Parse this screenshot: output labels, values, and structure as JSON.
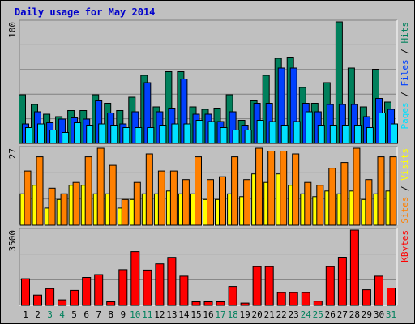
{
  "title": "Daily usage for May 2014",
  "colors": {
    "hits": "#00805c",
    "files": "#0040ff",
    "pages": "#00e0ff",
    "visits": "#ffff00",
    "sites": "#ff8000",
    "kbytes": "#ff0000",
    "weekday": "#000000",
    "weekend": "#00805c",
    "plot_bg": "#c0c0c0",
    "grid": "#808080"
  },
  "chart_data": [
    {
      "type": "bar",
      "panel": "hits-files-pages",
      "ylabel_parts": [
        "Pages",
        " / ",
        "Files",
        " / ",
        "Hits"
      ],
      "ytick": "100",
      "ymax": 100,
      "categories": [
        "1",
        "2",
        "3",
        "4",
        "5",
        "6",
        "7",
        "8",
        "9",
        "10",
        "11",
        "12",
        "13",
        "14",
        "15",
        "16",
        "17",
        "18",
        "19",
        "20",
        "21",
        "22",
        "23",
        "24",
        "25",
        "26",
        "27",
        "28",
        "29",
        "30",
        "31"
      ],
      "weekend": [
        false,
        false,
        true,
        true,
        false,
        false,
        false,
        false,
        false,
        true,
        true,
        false,
        false,
        false,
        false,
        false,
        true,
        true,
        false,
        false,
        false,
        false,
        false,
        true,
        true,
        false,
        false,
        false,
        false,
        false,
        true
      ],
      "series": [
        {
          "name": "Hits",
          "key": "hits",
          "values": [
            40,
            32,
            24,
            22,
            27,
            27,
            40,
            33,
            27,
            38,
            56,
            30,
            59,
            59,
            30,
            28,
            29,
            40,
            19,
            35,
            56,
            70,
            71,
            46,
            33,
            50,
            100,
            62,
            30,
            61,
            34
          ]
        },
        {
          "name": "Files",
          "key": "files",
          "values": [
            16,
            26,
            17,
            20,
            21,
            20,
            35,
            25,
            16,
            26,
            50,
            26,
            29,
            53,
            24,
            24,
            18,
            26,
            15,
            33,
            33,
            62,
            62,
            33,
            26,
            32,
            32,
            32,
            22,
            37,
            28
          ]
        },
        {
          "name": "Pages",
          "key": "pages",
          "values": [
            13,
            16,
            11,
            9,
            17,
            15,
            16,
            15,
            13,
            13,
            13,
            15,
            16,
            16,
            19,
            18,
            13,
            11,
            11,
            19,
            18,
            15,
            18,
            26,
            15,
            15,
            15,
            15,
            13,
            25,
            16
          ]
        }
      ]
    },
    {
      "type": "bar",
      "panel": "visits-sites",
      "ylabel_parts": [
        "Sites",
        " / ",
        "Visits"
      ],
      "ytick": "27",
      "ymax": 27,
      "categories": [
        "1",
        "2",
        "3",
        "4",
        "5",
        "6",
        "7",
        "8",
        "9",
        "10",
        "11",
        "12",
        "13",
        "14",
        "15",
        "16",
        "17",
        "18",
        "19",
        "20",
        "21",
        "22",
        "23",
        "24",
        "25",
        "26",
        "27",
        "28",
        "29",
        "30",
        "31"
      ],
      "series": [
        {
          "name": "Visits",
          "key": "visits",
          "values": [
            11,
            14,
            6,
            9,
            14,
            14,
            11,
            11,
            6,
            9,
            11,
            11,
            12,
            11,
            11,
            9,
            9,
            11,
            10,
            18,
            15,
            18,
            14,
            11,
            10,
            12,
            11,
            12,
            9,
            11,
            12
          ]
        },
        {
          "name": "Sites",
          "key": "sites",
          "values": [
            19,
            24,
            13,
            11,
            15,
            24,
            27,
            21,
            9,
            15,
            25,
            19,
            19,
            16,
            24,
            16,
            17,
            24,
            16,
            27,
            26,
            26,
            25,
            15,
            14,
            20,
            22,
            27,
            16,
            24,
            24
          ]
        }
      ]
    },
    {
      "type": "bar",
      "panel": "kbytes",
      "ylabel_parts": [
        "KBytes"
      ],
      "ytick": "3500",
      "ymax": 3500,
      "categories": [
        "1",
        "2",
        "3",
        "4",
        "5",
        "6",
        "7",
        "8",
        "9",
        "10",
        "11",
        "12",
        "13",
        "14",
        "15",
        "16",
        "17",
        "18",
        "19",
        "20",
        "21",
        "22",
        "23",
        "24",
        "25",
        "26",
        "27",
        "28",
        "29",
        "30",
        "31"
      ],
      "series": [
        {
          "name": "KBytes",
          "key": "kbytes",
          "values": [
            1240,
            480,
            780,
            260,
            700,
            1300,
            1430,
            170,
            1660,
            2500,
            1640,
            1930,
            2230,
            1360,
            170,
            170,
            170,
            880,
            110,
            1800,
            1800,
            600,
            600,
            600,
            200,
            1800,
            2240,
            3500,
            730,
            1360,
            810
          ]
        }
      ]
    }
  ]
}
